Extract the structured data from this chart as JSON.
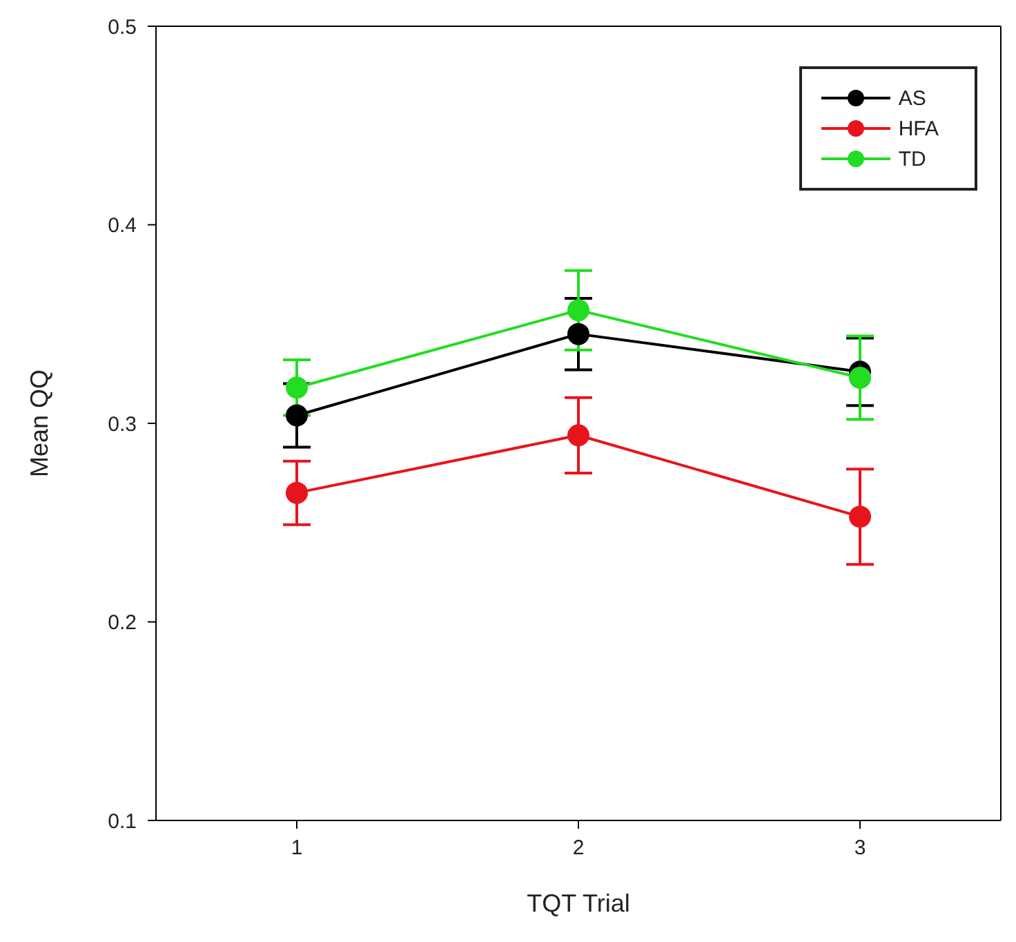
{
  "chart_data": {
    "type": "line",
    "xlabel": "TQT Trial",
    "ylabel": "Mean QQ",
    "x": [
      1,
      2,
      3
    ],
    "xlim": [
      0.5,
      3.5
    ],
    "xticks": [
      1,
      2,
      3
    ],
    "ylim": [
      0.1,
      0.5
    ],
    "yticks": [
      0.1,
      0.2,
      0.3,
      0.4,
      0.5
    ],
    "legend": "top right",
    "marker": "circle",
    "line_style": "solid",
    "series": [
      {
        "name": "AS",
        "color": "#000000",
        "values": [
          0.304,
          0.345,
          0.326
        ],
        "errors": [
          0.016,
          0.018,
          0.017
        ]
      },
      {
        "name": "HFA",
        "color": "#e8141c",
        "values": [
          0.265,
          0.294,
          0.253
        ],
        "errors": [
          0.016,
          0.019,
          0.024
        ]
      },
      {
        "name": "TD",
        "color": "#22dd22",
        "values": [
          0.318,
          0.357,
          0.323
        ],
        "errors": [
          0.014,
          0.02,
          0.021
        ]
      }
    ]
  }
}
